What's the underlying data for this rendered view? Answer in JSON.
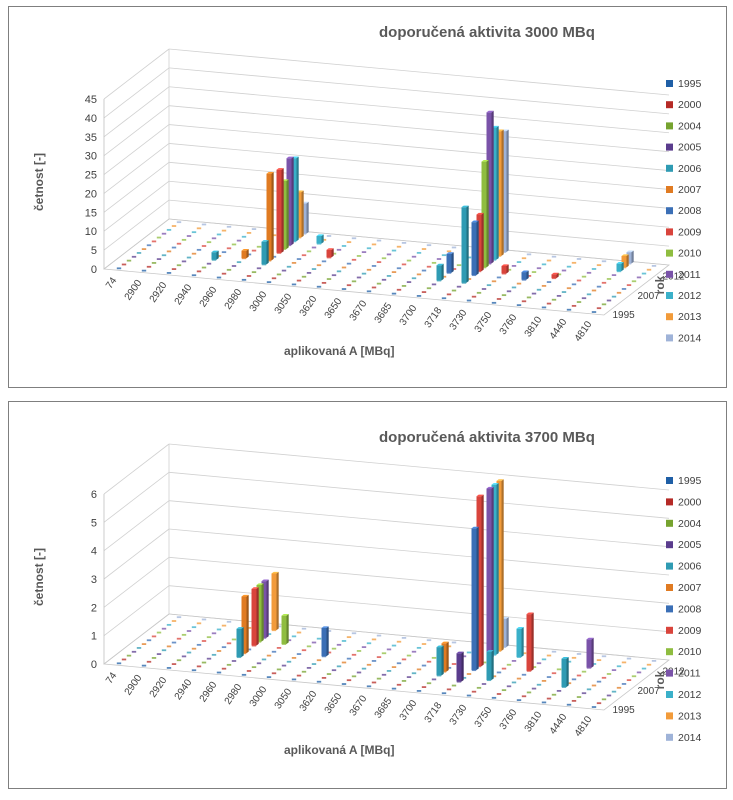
{
  "chart_data": [
    {
      "type": "bar3d",
      "title": "doporučená aktivita 3000 MBq",
      "xlabel": "aplikovaná A [MBq]",
      "ylabel": "četnost [-]",
      "depth_label": "rok",
      "depth_ticks": [
        "2012",
        "2007",
        "1995"
      ],
      "x_ticks": [
        "74",
        "2900",
        "2920",
        "2940",
        "2960",
        "2980",
        "3000",
        "3050",
        "3620",
        "3650",
        "3670",
        "3685",
        "3700",
        "3718",
        "3730",
        "3750",
        "3760",
        "3810",
        "4440",
        "4810"
      ],
      "y_ticks": [
        0,
        5,
        10,
        15,
        20,
        25,
        30,
        35,
        40,
        45
      ],
      "ylim": [
        0,
        45
      ],
      "legend_position": "right",
      "legend": [
        "1995",
        "2000",
        "2004",
        "2005",
        "2006",
        "2007",
        "2008",
        "2009",
        "2010",
        "2011",
        "2012",
        "2013",
        "2014"
      ],
      "series_colors": [
        "#1f5fa6",
        "#b52a26",
        "#76a32f",
        "#5a3c8d",
        "#2f9bb3",
        "#e07b22",
        "#3b6fb6",
        "#d9443c",
        "#8fbd40",
        "#7a53a9",
        "#3ab0c9",
        "#f29b3a",
        "#9fb3d8"
      ],
      "bars": [
        {
          "x": "2980",
          "series": "2007",
          "value": 23
        },
        {
          "x": "2980",
          "series": "2009",
          "value": 22
        },
        {
          "x": "2980",
          "series": "2011",
          "value": 23
        },
        {
          "x": "2980",
          "series": "2012",
          "value": 22
        },
        {
          "x": "2980",
          "series": "2010",
          "value": 18
        },
        {
          "x": "2980",
          "series": "2006",
          "value": 6
        },
        {
          "x": "2980",
          "series": "2013",
          "value": 12
        },
        {
          "x": "2980",
          "series": "2014",
          "value": 8
        },
        {
          "x": "2940",
          "series": "2006",
          "value": 2
        },
        {
          "x": "2960",
          "series": "2007",
          "value": 2
        },
        {
          "x": "3000",
          "series": "2012",
          "value": 2
        },
        {
          "x": "3050",
          "series": "2009",
          "value": 2
        },
        {
          "x": "3700",
          "series": "2006",
          "value": 4
        },
        {
          "x": "3700",
          "series": "2008",
          "value": 5
        },
        {
          "x": "3718",
          "series": "2006",
          "value": 20
        },
        {
          "x": "3718",
          "series": "2008",
          "value": 14
        },
        {
          "x": "3718",
          "series": "2009",
          "value": 15
        },
        {
          "x": "3718",
          "series": "2010",
          "value": 28
        },
        {
          "x": "3718",
          "series": "2011",
          "value": 40
        },
        {
          "x": "3718",
          "series": "2012",
          "value": 35
        },
        {
          "x": "3718",
          "series": "2013",
          "value": 33
        },
        {
          "x": "3718",
          "series": "2014",
          "value": 32
        },
        {
          "x": "3730",
          "series": "2009",
          "value": 2
        },
        {
          "x": "3750",
          "series": "2008",
          "value": 2
        },
        {
          "x": "3760",
          "series": "2009",
          "value": 1
        },
        {
          "x": "4440",
          "series": "2012",
          "value": 2
        },
        {
          "x": "4440",
          "series": "2013",
          "value": 3
        },
        {
          "x": "4440",
          "series": "2014",
          "value": 3
        }
      ]
    },
    {
      "type": "bar3d",
      "title": "doporučená aktivita 3700 MBq",
      "xlabel": "aplikovaná A [MBq]",
      "ylabel": "četnost [-]",
      "depth_label": "rok",
      "depth_ticks": [
        "2012",
        "2007",
        "1995"
      ],
      "x_ticks": [
        "74",
        "2900",
        "2920",
        "2940",
        "2960",
        "2980",
        "3000",
        "3050",
        "3620",
        "3650",
        "3670",
        "3685",
        "3700",
        "3718",
        "3730",
        "3750",
        "3760",
        "3810",
        "4440",
        "4810"
      ],
      "y_ticks": [
        0,
        1,
        2,
        3,
        4,
        5,
        6
      ],
      "ylim": [
        0,
        6
      ],
      "legend_position": "right",
      "legend": [
        "1995",
        "2000",
        "2004",
        "2005",
        "2006",
        "2007",
        "2008",
        "2009",
        "2010",
        "2011",
        "2012",
        "2013",
        "2014"
      ],
      "series_colors": [
        "#1f5fa6",
        "#b52a26",
        "#76a32f",
        "#5a3c8d",
        "#2f9bb3",
        "#e07b22",
        "#3b6fb6",
        "#d9443c",
        "#8fbd40",
        "#7a53a9",
        "#3ab0c9",
        "#f29b3a",
        "#9fb3d8"
      ],
      "bars": [
        {
          "x": "2960",
          "series": "2007",
          "value": 2
        },
        {
          "x": "2960",
          "series": "2009",
          "value": 2
        },
        {
          "x": "2960",
          "series": "2011",
          "value": 2
        },
        {
          "x": "2960",
          "series": "2010",
          "value": 2
        },
        {
          "x": "2960",
          "series": "2013",
          "value": 2
        },
        {
          "x": "2960",
          "series": "2006",
          "value": 1
        },
        {
          "x": "2980",
          "series": "2010",
          "value": 1
        },
        {
          "x": "3050",
          "series": "2008",
          "value": 1
        },
        {
          "x": "3700",
          "series": "2007",
          "value": 1
        },
        {
          "x": "3700",
          "series": "2006",
          "value": 1
        },
        {
          "x": "3718",
          "series": "2008",
          "value": 5
        },
        {
          "x": "3718",
          "series": "2009",
          "value": 6
        },
        {
          "x": "3718",
          "series": "2011",
          "value": 6
        },
        {
          "x": "3718",
          "series": "2012",
          "value": 6
        },
        {
          "x": "3718",
          "series": "2013",
          "value": 6
        },
        {
          "x": "3718",
          "series": "2014",
          "value": 1
        },
        {
          "x": "3718",
          "series": "2005",
          "value": 1
        },
        {
          "x": "3730",
          "series": "2006",
          "value": 1
        },
        {
          "x": "3730",
          "series": "2012",
          "value": 1
        },
        {
          "x": "3750",
          "series": "2009",
          "value": 2
        },
        {
          "x": "3810",
          "series": "2006",
          "value": 1
        },
        {
          "x": "3810",
          "series": "2011",
          "value": 1
        }
      ]
    }
  ]
}
